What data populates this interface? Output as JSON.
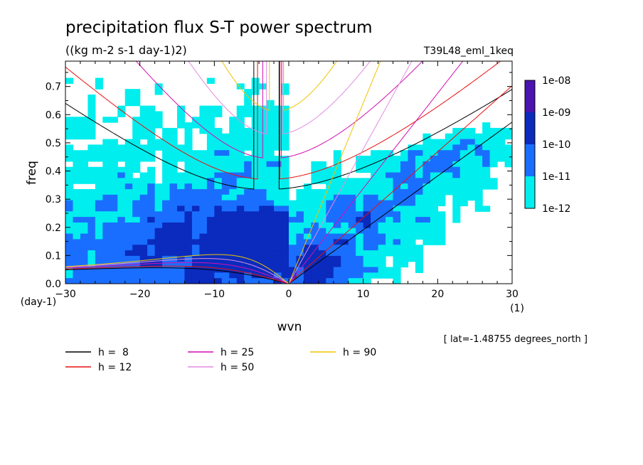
{
  "chart_data": {
    "type": "heatmap",
    "title": "precipitation flux S-T power spectrum",
    "subtitle": "((kg m-2 s-1 day-1)2)",
    "run_label": "T39L48_eml_1keq",
    "xlabel": "wvn",
    "xunit": "(1)",
    "ylabel": "freq",
    "yunit": "(day-1)",
    "xlim": [
      -30,
      30
    ],
    "ylim": [
      0,
      0.79
    ],
    "xticks": [
      -30,
      -20,
      -10,
      0,
      10,
      20,
      30
    ],
    "xtick_labels": [
      "−30",
      "−20",
      "−10",
      "0",
      "10",
      "20",
      "30"
    ],
    "yticks": [
      0.0,
      0.1,
      0.2,
      0.3,
      0.4,
      0.5,
      0.6,
      0.7
    ],
    "ytick_labels": [
      "0.0",
      "0.1",
      "0.2",
      "0.3",
      "0.4",
      "0.5",
      "0.6",
      "0.7"
    ],
    "colorbar": {
      "levels": [
        "1e-12",
        "1e-11",
        "1e-10",
        "1e-09",
        "1e-08"
      ],
      "colors": [
        "#00eeee",
        "#1a6eff",
        "#0a2bbd",
        "#4b14b0"
      ]
    },
    "lat_note": "[ lat=-1.48755 degrees_north ]",
    "dispersion_curves": [
      {
        "label": "h =  8",
        "h": 8,
        "color": "#000000"
      },
      {
        "label": "h = 12",
        "h": 12,
        "color": "#e81010"
      },
      {
        "label": "h = 25",
        "h": 25,
        "color": "#d40fb0"
      },
      {
        "label": "h = 50",
        "h": 50,
        "color": "#e28ce2"
      },
      {
        "label": "h = 90",
        "h": 90,
        "color": "#f0c400"
      }
    ]
  }
}
